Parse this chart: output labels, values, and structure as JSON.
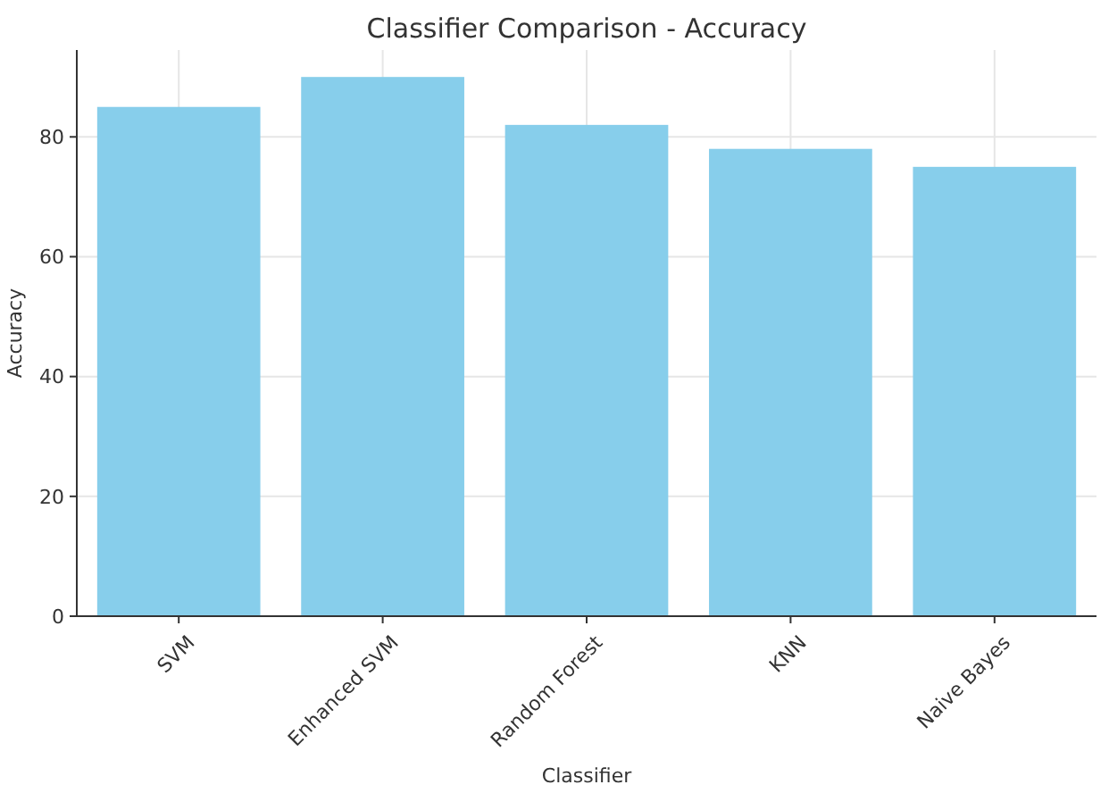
{
  "chart_data": {
    "type": "bar",
    "title": "Classifier Comparison - Accuracy",
    "xlabel": "Classifier",
    "ylabel": "Accuracy",
    "categories": [
      "SVM",
      "Enhanced SVM",
      "Random Forest",
      "KNN",
      "Naive Bayes"
    ],
    "values": [
      85,
      90,
      82,
      78,
      75
    ],
    "color": "#87ceeb",
    "ylim": [
      0,
      94.5
    ],
    "yticks": [
      0,
      20,
      40,
      60,
      80
    ],
    "grid": true
  }
}
